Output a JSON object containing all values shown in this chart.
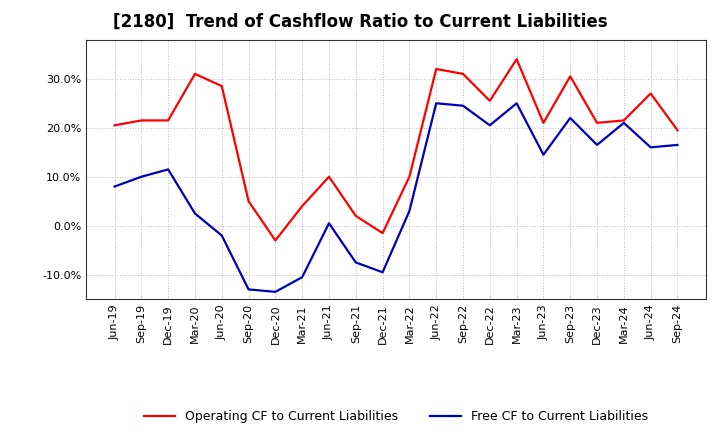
{
  "title": "[2180]  Trend of Cashflow Ratio to Current Liabilities",
  "x_labels": [
    "Jun-19",
    "Sep-19",
    "Dec-19",
    "Mar-20",
    "Jun-20",
    "Sep-20",
    "Dec-20",
    "Mar-21",
    "Jun-21",
    "Sep-21",
    "Dec-21",
    "Mar-22",
    "Jun-22",
    "Sep-22",
    "Dec-22",
    "Mar-23",
    "Jun-23",
    "Sep-23",
    "Dec-23",
    "Mar-24",
    "Jun-24",
    "Sep-24"
  ],
  "operating_cf": [
    20.5,
    21.5,
    21.5,
    31.0,
    28.5,
    5.0,
    -3.0,
    4.0,
    10.0,
    2.0,
    -1.5,
    10.0,
    32.0,
    31.0,
    25.5,
    34.0,
    21.0,
    30.5,
    21.0,
    21.5,
    27.0,
    19.5
  ],
  "free_cf": [
    8.0,
    10.0,
    11.5,
    2.5,
    -2.0,
    -13.0,
    -13.5,
    -10.5,
    0.5,
    -7.5,
    -9.5,
    3.0,
    25.0,
    24.5,
    20.5,
    25.0,
    14.5,
    22.0,
    16.5,
    21.0,
    16.0,
    16.5
  ],
  "operating_color": "#FF0000",
  "free_color": "#0000BB",
  "ylim": [
    -15,
    38
  ],
  "yticks": [
    -10.0,
    0.0,
    10.0,
    20.0,
    30.0
  ],
  "background_color": "#FFFFFF",
  "grid_color": "#BBBBBB",
  "title_fontsize": 12,
  "legend_fontsize": 9,
  "tick_fontsize": 8,
  "line_width": 1.6
}
